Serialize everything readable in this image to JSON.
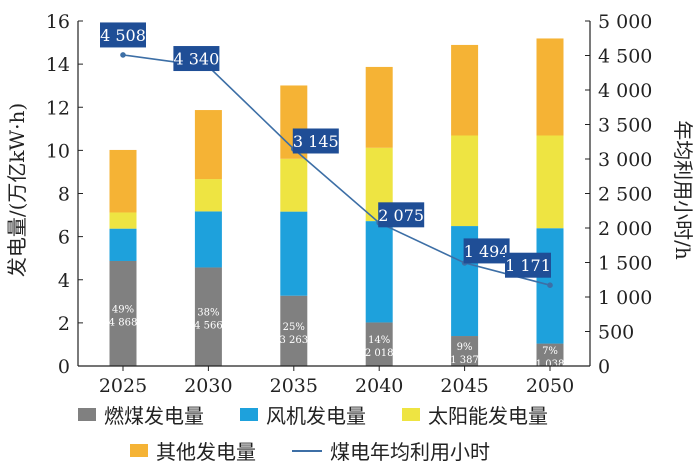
{
  "chart_data": {
    "type": "bar",
    "subtype": "stacked bar with line on secondary axis",
    "categories": [
      "2025",
      "2030",
      "2035",
      "2040",
      "2045",
      "2050"
    ],
    "series": [
      {
        "name": "燃煤发电量",
        "color": "#808080",
        "values": [
          4.87,
          4.57,
          3.26,
          2.02,
          1.39,
          1.04
        ]
      },
      {
        "name": "风机发电量",
        "color": "#1ea1dc",
        "values": [
          1.5,
          2.6,
          3.9,
          4.7,
          5.1,
          5.35
        ]
      },
      {
        "name": "太阳能发电量",
        "color": "#eee442",
        "values": [
          0.75,
          1.5,
          2.45,
          3.4,
          4.2,
          4.3
        ]
      },
      {
        "name": "其他发电量",
        "color": "#f5b335",
        "values": [
          2.9,
          3.2,
          3.4,
          3.75,
          4.2,
          4.5
        ]
      }
    ],
    "line_series": {
      "name": "煤电年均利用小时",
      "color": "#3d6fa6",
      "axis": "right",
      "values": [
        4508,
        4340,
        3145,
        2075,
        1494,
        1171
      ],
      "labels": [
        "4 508",
        "4 340",
        "3 145",
        "2 075",
        "1 494",
        "1 171"
      ]
    },
    "coal_share_labels": [
      "49%",
      "38%",
      "25%",
      "14%",
      "9%",
      "7%"
    ],
    "coal_value_labels": [
      "4 868",
      "4 566",
      "3 263",
      "2 018",
      "1 387",
      "1 038"
    ],
    "ylabel": "发电量/(万亿kW·h)",
    "y2label": "年均利用小时/h",
    "ylim": [
      0,
      16
    ],
    "y2lim": [
      0,
      5000
    ],
    "yticks": [
      "0",
      "2",
      "4",
      "6",
      "8",
      "10",
      "12",
      "14",
      "16"
    ],
    "y2ticks": [
      "0",
      "500",
      "1 000",
      "1 500",
      "2 000",
      "2 500",
      "3 000",
      "3 500",
      "4 000",
      "4 500",
      "5 000"
    ],
    "grid": false,
    "legend_position": "bottom"
  }
}
